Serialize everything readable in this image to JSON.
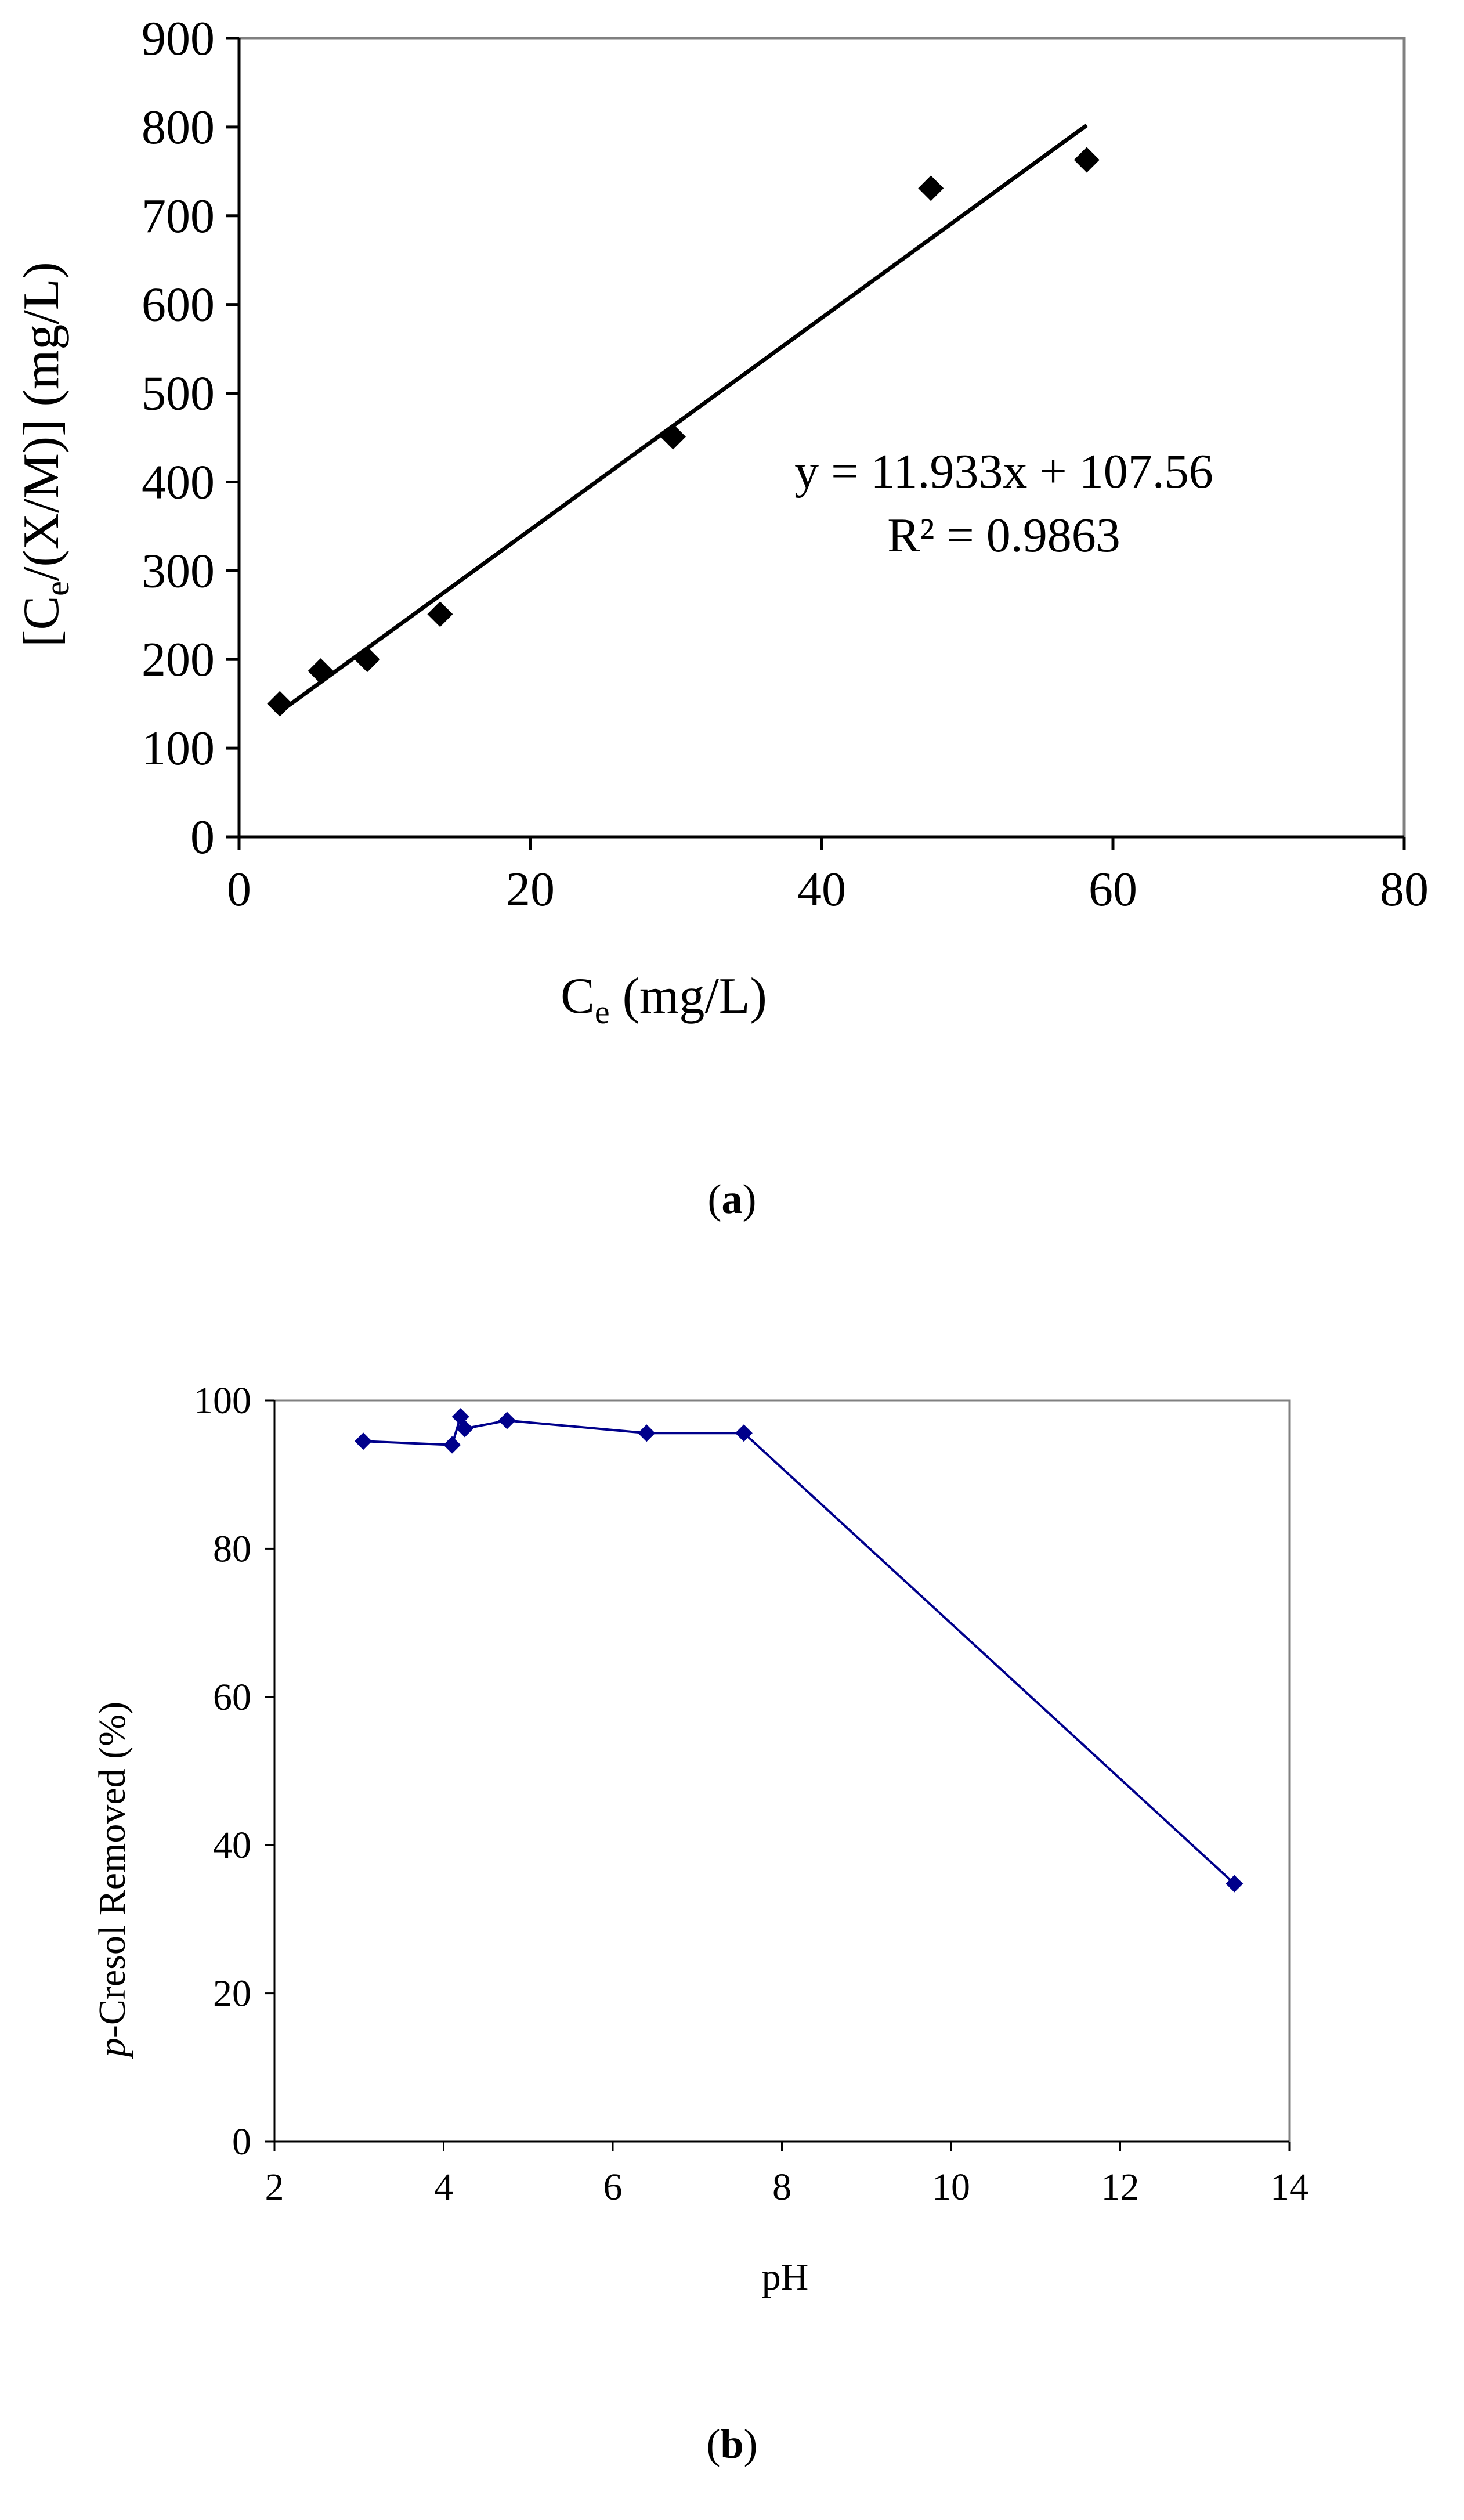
{
  "chart_data": [
    {
      "panel": "a",
      "type": "scatter",
      "series": [
        {
          "name": "data",
          "marker": "diamond",
          "x": [
            2.8,
            5.6,
            8.8,
            13.8,
            29.8,
            47.5,
            58.2
          ],
          "y": [
            150,
            187,
            200,
            251,
            451,
            731,
            763
          ]
        }
      ],
      "trendline": {
        "type": "linear",
        "slope": 11.933,
        "intercept": 107.56,
        "x_range": [
          2.8,
          58.2
        ],
        "equation": "y = 11.933x + 107.56",
        "r2_text": "R² = 0.9863"
      },
      "title": "",
      "xlabel_main": "C",
      "xlabel_sub": "e",
      "xlabel_tail": " (mg/L)",
      "ylabel_pre": "[C",
      "ylabel_sub": "e",
      "ylabel_tail": "/(X/M)] (mg/L)",
      "xlim": [
        0,
        80
      ],
      "ylim": [
        0,
        900
      ],
      "xticks": [
        0,
        20,
        40,
        60,
        80
      ],
      "yticks": [
        0,
        100,
        200,
        300,
        400,
        500,
        600,
        700,
        800,
        900
      ],
      "grid": false,
      "legend": "none"
    },
    {
      "panel": "b",
      "type": "line",
      "series": [
        {
          "name": "p-Cresol Removed",
          "marker": "diamond",
          "color": "#00008B",
          "x": [
            3.05,
            4.1,
            4.2,
            4.25,
            4.75,
            6.4,
            7.55,
            13.35
          ],
          "y": [
            94.5,
            94.0,
            97.8,
            96.2,
            97.3,
            95.6,
            95.6,
            34.8
          ]
        }
      ],
      "title": "",
      "xlabel": "pH",
      "ylabel_italic": "p",
      "ylabel_tail": "-Cresol Removed (%)",
      "xlim": [
        2,
        14
      ],
      "ylim": [
        0,
        100
      ],
      "xticks": [
        2,
        4,
        6,
        8,
        10,
        12,
        14
      ],
      "yticks": [
        0,
        20,
        40,
        60,
        80,
        100
      ],
      "grid": false,
      "legend": "none"
    }
  ],
  "captions": {
    "a": "a",
    "b": "b",
    "open": "(",
    "close": ")"
  },
  "colors": {
    "panel_a_ink": "#000000",
    "panel_b_series": "#00008B",
    "panel_b_frame": "#808080"
  }
}
